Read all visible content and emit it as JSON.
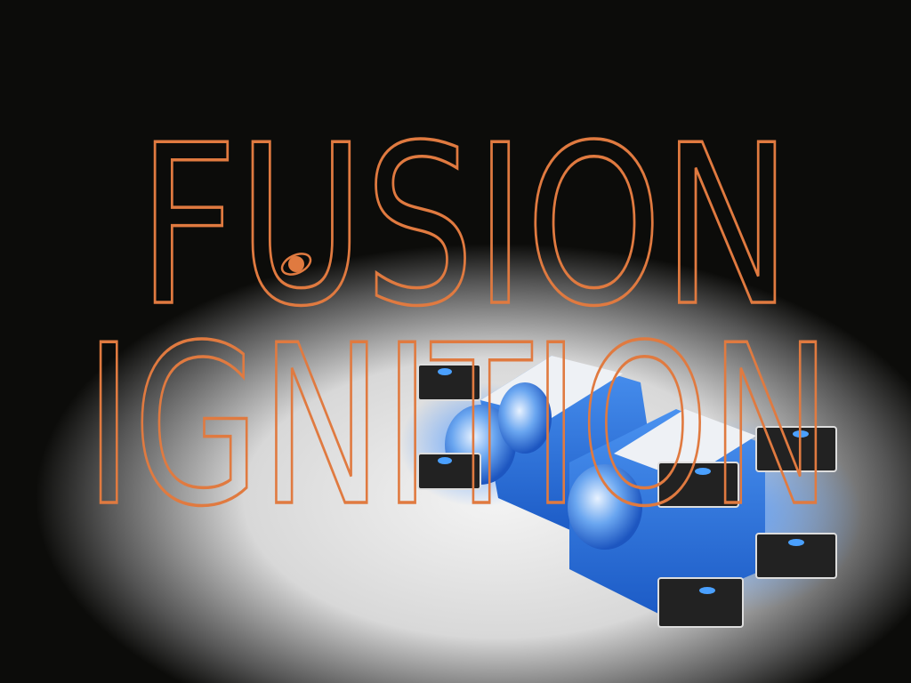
{
  "title": {
    "line1": "FUSION",
    "line2": "IGNITION"
  }
}
